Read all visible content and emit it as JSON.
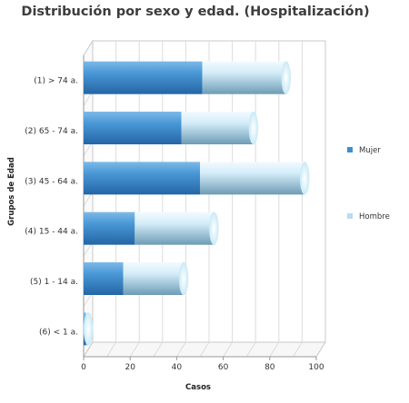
{
  "chart_data": {
    "type": "bar",
    "orientation": "horizontal",
    "stacked": true,
    "style": "3d-cylinder",
    "title": "Distribución por sexo y edad. (Hospitalización)",
    "xlabel": "Casos",
    "ylabel": "Grupos de Edad",
    "xlim": [
      0,
      100
    ],
    "xticks": [
      0,
      20,
      40,
      60,
      80,
      100
    ],
    "grid": true,
    "legend_position": "right",
    "categories": [
      "(1) > 74 a.",
      "(2) 65 - 74 a.",
      "(3) 45 - 64 a.",
      "(4) 15 - 44 a.",
      "(5) 1 - 14 a.",
      "(6) < 1 a."
    ],
    "series": [
      {
        "name": "Mujer",
        "color": "#3a8fd1",
        "values": [
          51,
          42,
          50,
          22,
          17,
          1
        ]
      },
      {
        "name": "Hombre",
        "color": "#b8dcf2",
        "values": [
          36,
          31,
          45,
          34,
          26,
          1
        ]
      }
    ]
  }
}
